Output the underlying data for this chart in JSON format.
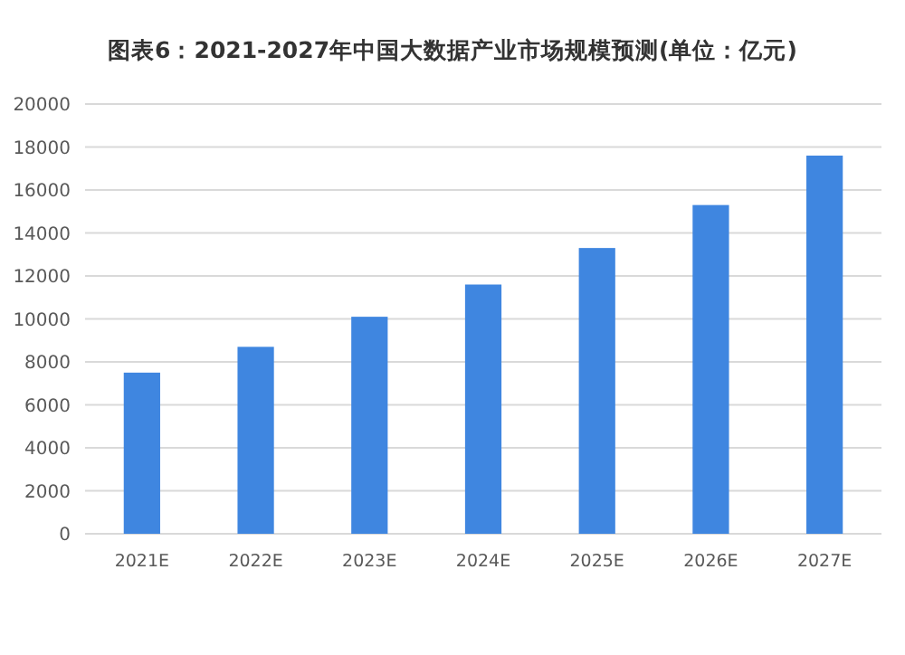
{
  "chart_data": {
    "type": "bar",
    "title": "图表6：2021-2027年中国大数据产业市场规模预测(单位：亿元)",
    "categories": [
      "2021E",
      "2022E",
      "2023E",
      "2024E",
      "2025E",
      "2026E",
      "2027E"
    ],
    "values": [
      7500,
      8700,
      10100,
      11600,
      13300,
      15300,
      17600
    ],
    "color": "#3f86e0",
    "ylim": [
      0,
      20000
    ],
    "yticks": [
      0,
      2000,
      4000,
      6000,
      8000,
      10000,
      12000,
      14000,
      16000,
      18000,
      20000
    ],
    "grid": "y"
  }
}
